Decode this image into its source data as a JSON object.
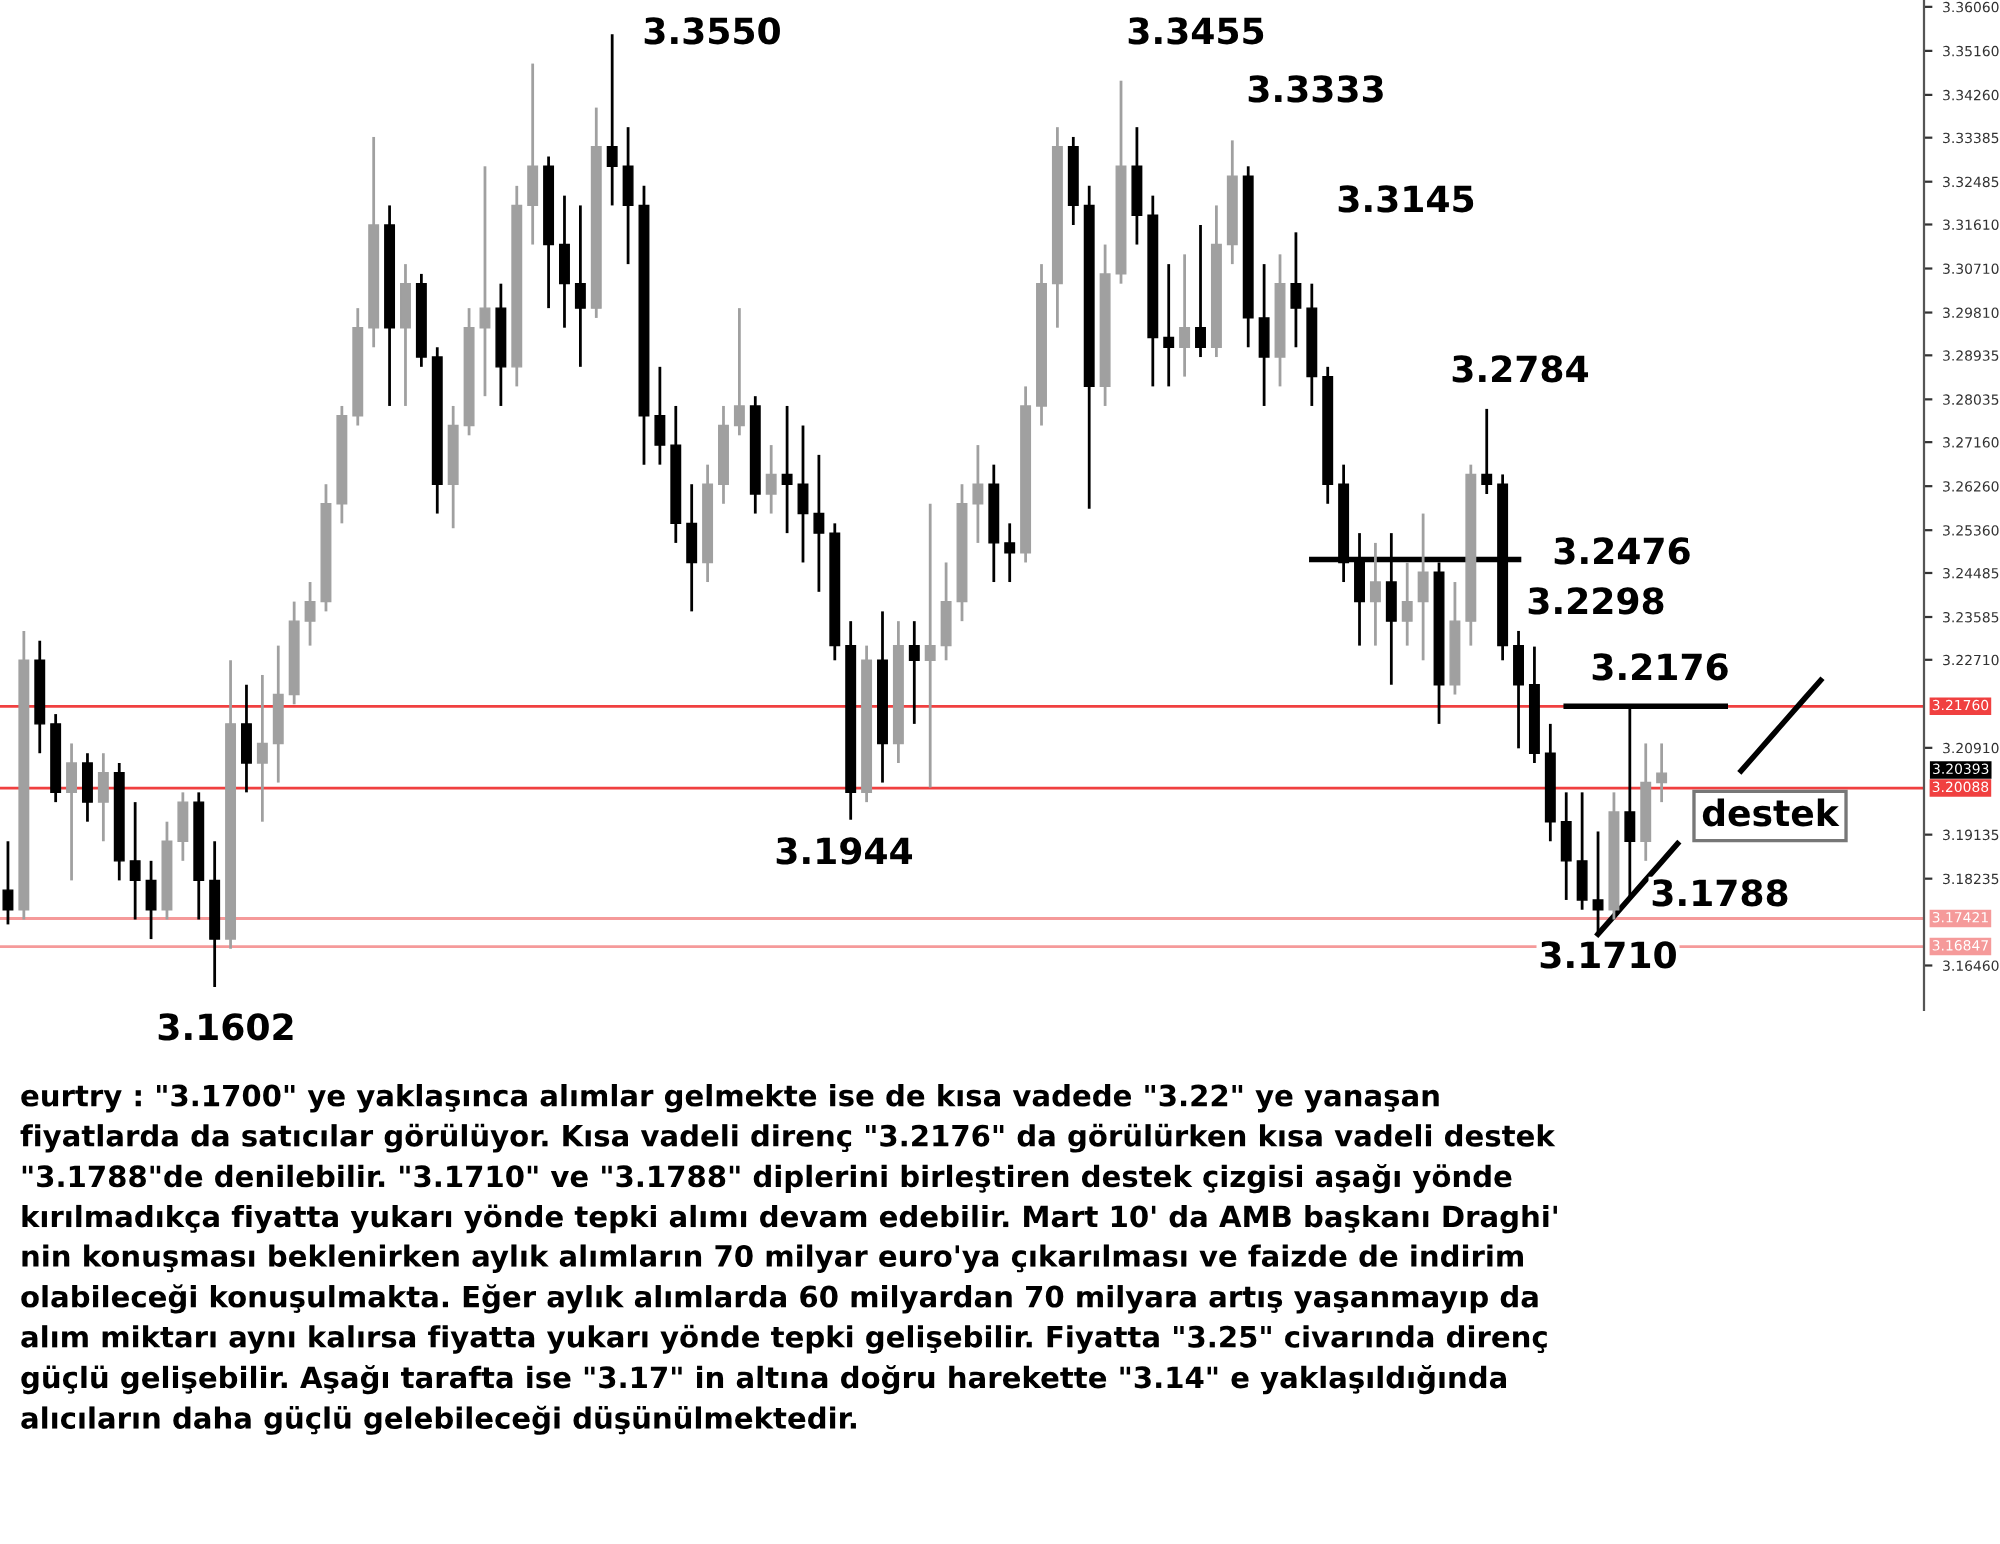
{
  "chart_data": {
    "type": "candlestick",
    "categories": [
      null,
      null,
      null,
      null,
      null,
      null,
      null,
      null,
      null,
      null,
      null,
      null,
      null,
      null,
      null,
      null,
      null,
      null,
      null,
      null,
      null,
      null,
      null,
      null,
      null,
      null,
      null,
      null,
      null,
      null,
      null,
      null,
      null,
      null,
      null,
      null,
      null,
      null,
      null,
      null,
      null,
      null,
      null,
      null,
      null,
      null,
      null,
      null,
      null,
      null,
      null,
      null,
      null,
      null,
      null,
      null,
      null,
      null,
      null,
      null,
      null,
      null,
      null,
      null,
      null,
      null,
      null,
      null,
      null,
      null,
      null,
      null,
      null,
      null,
      null,
      null,
      null,
      null,
      null,
      null,
      null,
      null,
      null,
      null,
      null,
      null,
      null,
      null,
      null,
      null,
      null,
      null,
      null,
      null,
      null,
      null,
      null,
      null,
      null,
      null,
      null,
      null,
      null,
      null,
      null,
      null,
      null,
      null,
      null,
      null,
      null,
      null,
      null,
      null,
      null,
      null,
      null,
      null,
      null,
      null,
      null
    ],
    "ohlc": [
      [
        3.18,
        3.19,
        3.173,
        3.176
      ],
      [
        3.176,
        3.233,
        3.174,
        3.227
      ],
      [
        3.227,
        3.231,
        3.208,
        3.214
      ],
      [
        3.214,
        3.216,
        3.198,
        3.2
      ],
      [
        3.2,
        3.21,
        3.182,
        3.206
      ],
      [
        3.206,
        3.208,
        3.194,
        3.198
      ],
      [
        3.198,
        3.208,
        3.19,
        3.204
      ],
      [
        3.204,
        3.206,
        3.182,
        3.186
      ],
      [
        3.186,
        3.198,
        3.174,
        3.182
      ],
      [
        3.182,
        3.186,
        3.17,
        3.176
      ],
      [
        3.176,
        3.194,
        3.174,
        3.19
      ],
      [
        3.19,
        3.2,
        3.186,
        3.198
      ],
      [
        3.198,
        3.2,
        3.174,
        3.182
      ],
      [
        3.182,
        3.19,
        3.1602,
        3.17
      ],
      [
        3.17,
        3.227,
        3.168,
        3.214
      ],
      [
        3.214,
        3.222,
        3.2,
        3.206
      ],
      [
        3.206,
        3.224,
        3.194,
        3.21
      ],
      [
        3.21,
        3.23,
        3.202,
        3.22
      ],
      [
        3.22,
        3.239,
        3.218,
        3.235
      ],
      [
        3.235,
        3.243,
        3.23,
        3.239
      ],
      [
        3.239,
        3.263,
        3.237,
        3.259
      ],
      [
        3.259,
        3.279,
        3.255,
        3.277
      ],
      [
        3.277,
        3.299,
        3.275,
        3.295
      ],
      [
        3.295,
        3.334,
        3.291,
        3.316
      ],
      [
        3.316,
        3.32,
        3.279,
        3.295
      ],
      [
        3.295,
        3.308,
        3.279,
        3.304
      ],
      [
        3.304,
        3.306,
        3.287,
        3.289
      ],
      [
        3.289,
        3.291,
        3.257,
        3.263
      ],
      [
        3.263,
        3.279,
        3.254,
        3.275
      ],
      [
        3.275,
        3.299,
        3.273,
        3.295
      ],
      [
        3.295,
        3.328,
        3.281,
        3.299
      ],
      [
        3.299,
        3.304,
        3.279,
        3.287
      ],
      [
        3.287,
        3.324,
        3.283,
        3.32
      ],
      [
        3.32,
        3.349,
        3.312,
        3.328
      ],
      [
        3.328,
        3.33,
        3.299,
        3.312
      ],
      [
        3.312,
        3.322,
        3.295,
        3.304
      ],
      [
        3.304,
        3.32,
        3.287,
        3.299
      ],
      [
        3.299,
        3.34,
        3.297,
        3.332
      ],
      [
        3.332,
        3.355,
        3.32,
        3.328
      ],
      [
        3.328,
        3.336,
        3.308,
        3.32
      ],
      [
        3.32,
        3.324,
        3.267,
        3.277
      ],
      [
        3.277,
        3.287,
        3.267,
        3.271
      ],
      [
        3.271,
        3.279,
        3.251,
        3.255
      ],
      [
        3.255,
        3.263,
        3.237,
        3.247
      ],
      [
        3.247,
        3.267,
        3.243,
        3.263
      ],
      [
        3.263,
        3.279,
        3.259,
        3.275
      ],
      [
        3.275,
        3.299,
        3.273,
        3.279
      ],
      [
        3.279,
        3.281,
        3.257,
        3.261
      ],
      [
        3.261,
        3.271,
        3.257,
        3.265
      ],
      [
        3.265,
        3.279,
        3.253,
        3.263
      ],
      [
        3.263,
        3.275,
        3.247,
        3.257
      ],
      [
        3.257,
        3.269,
        3.241,
        3.253
      ],
      [
        3.253,
        3.255,
        3.227,
        3.23
      ],
      [
        3.23,
        3.235,
        3.1944,
        3.2
      ],
      [
        3.2,
        3.23,
        3.198,
        3.227
      ],
      [
        3.227,
        3.237,
        3.202,
        3.21
      ],
      [
        3.21,
        3.235,
        3.206,
        3.23
      ],
      [
        3.23,
        3.235,
        3.214,
        3.227
      ],
      [
        3.227,
        3.259,
        3.201,
        3.23
      ],
      [
        3.23,
        3.247,
        3.227,
        3.239
      ],
      [
        3.239,
        3.263,
        3.235,
        3.259
      ],
      [
        3.259,
        3.271,
        3.251,
        3.263
      ],
      [
        3.263,
        3.267,
        3.243,
        3.251
      ],
      [
        3.251,
        3.255,
        3.243,
        3.249
      ],
      [
        3.249,
        3.283,
        3.247,
        3.279
      ],
      [
        3.279,
        3.308,
        3.275,
        3.304
      ],
      [
        3.304,
        3.336,
        3.295,
        3.332
      ],
      [
        3.332,
        3.334,
        3.316,
        3.32
      ],
      [
        3.32,
        3.324,
        3.258,
        3.283
      ],
      [
        3.283,
        3.312,
        3.279,
        3.306
      ],
      [
        3.306,
        3.3455,
        3.304,
        3.328
      ],
      [
        3.328,
        3.336,
        3.312,
        3.318
      ],
      [
        3.318,
        3.322,
        3.283,
        3.293
      ],
      [
        3.293,
        3.308,
        3.283,
        3.291
      ],
      [
        3.291,
        3.31,
        3.285,
        3.295
      ],
      [
        3.295,
        3.316,
        3.289,
        3.291
      ],
      [
        3.291,
        3.32,
        3.289,
        3.312
      ],
      [
        3.312,
        3.3333,
        3.308,
        3.326
      ],
      [
        3.326,
        3.328,
        3.291,
        3.297
      ],
      [
        3.297,
        3.308,
        3.279,
        3.289
      ],
      [
        3.289,
        3.31,
        3.283,
        3.304
      ],
      [
        3.304,
        3.3145,
        3.291,
        3.299
      ],
      [
        3.299,
        3.304,
        3.279,
        3.285
      ],
      [
        3.285,
        3.287,
        3.259,
        3.263
      ],
      [
        3.263,
        3.267,
        3.243,
        3.247
      ],
      [
        3.247,
        3.253,
        3.23,
        3.239
      ],
      [
        3.239,
        3.251,
        3.23,
        3.243
      ],
      [
        3.243,
        3.253,
        3.222,
        3.235
      ],
      [
        3.235,
        3.247,
        3.23,
        3.239
      ],
      [
        3.239,
        3.257,
        3.227,
        3.245
      ],
      [
        3.245,
        3.247,
        3.214,
        3.222
      ],
      [
        3.222,
        3.243,
        3.22,
        3.235
      ],
      [
        3.235,
        3.267,
        3.23,
        3.265
      ],
      [
        3.265,
        3.2784,
        3.261,
        3.263
      ],
      [
        3.263,
        3.265,
        3.227,
        3.23
      ],
      [
        3.23,
        3.233,
        3.209,
        3.222
      ],
      [
        3.222,
        3.2298,
        3.206,
        3.208
      ],
      [
        3.208,
        3.214,
        3.19,
        3.194
      ],
      [
        3.194,
        3.2,
        3.178,
        3.186
      ],
      [
        3.186,
        3.2,
        3.176,
        3.178
      ],
      [
        3.178,
        3.192,
        3.171,
        3.176
      ],
      [
        3.176,
        3.2,
        3.174,
        3.196
      ],
      [
        3.196,
        3.2176,
        3.1788,
        3.19
      ],
      [
        3.19,
        3.21,
        3.186,
        3.202
      ],
      [
        3.202,
        3.21,
        3.198,
        3.20393
      ],
      null,
      null,
      null,
      null,
      null,
      null,
      null,
      null,
      null,
      null,
      null,
      null,
      null,
      null,
      null,
      null
    ],
    "colors": [
      "#000000",
      "#a0a0a0",
      "#000000",
      "#000000",
      "#a0a0a0",
      "#000000",
      "#a0a0a0",
      "#000000",
      "#000000",
      "#000000",
      "#a0a0a0",
      "#a0a0a0",
      "#000000",
      "#000000",
      "#a0a0a0",
      "#000000",
      "#a0a0a0",
      "#a0a0a0",
      "#a0a0a0",
      "#a0a0a0",
      "#a0a0a0",
      "#a0a0a0",
      "#a0a0a0",
      "#a0a0a0",
      "#000000",
      "#a0a0a0",
      "#000000",
      "#000000",
      "#a0a0a0",
      "#a0a0a0",
      "#a0a0a0",
      "#000000",
      "#a0a0a0",
      "#a0a0a0",
      "#000000",
      "#000000",
      "#000000",
      "#a0a0a0",
      "#000000",
      "#000000",
      "#000000",
      "#000000",
      "#000000",
      "#000000",
      "#a0a0a0",
      "#a0a0a0",
      "#a0a0a0",
      "#000000",
      "#a0a0a0",
      "#000000",
      "#000000",
      "#000000",
      "#000000",
      "#000000",
      "#a0a0a0",
      "#000000",
      "#a0a0a0",
      "#000000",
      "#a0a0a0",
      "#a0a0a0",
      "#a0a0a0",
      "#a0a0a0",
      "#000000",
      "#000000",
      "#a0a0a0",
      "#a0a0a0",
      "#a0a0a0",
      "#000000",
      "#000000",
      "#a0a0a0",
      "#a0a0a0",
      "#000000",
      "#000000",
      "#000000",
      "#a0a0a0",
      "#000000",
      "#a0a0a0",
      "#a0a0a0",
      "#000000",
      "#000000",
      "#a0a0a0",
      "#000000",
      "#000000",
      "#000000",
      "#000000",
      "#000000",
      "#a0a0a0",
      "#000000",
      "#a0a0a0",
      "#a0a0a0",
      "#000000",
      "#a0a0a0",
      "#a0a0a0",
      "#000000",
      "#000000",
      "#000000",
      "#000000",
      "#000000",
      "#000000",
      "#000000",
      "#000000",
      "#a0a0a0",
      "#000000",
      "#a0a0a0",
      "#a0a0a0",
      null,
      null,
      null,
      null,
      null,
      null,
      null,
      null,
      null,
      null,
      null,
      null,
      null,
      null,
      null,
      null
    ],
    "series": [
      {
        "type": "line",
        "color": "#000000",
        "values": [
          null,
          null,
          null,
          null,
          null,
          null,
          null,
          null,
          null,
          null,
          null,
          null,
          null,
          null,
          null,
          null,
          null,
          null,
          null,
          null,
          null,
          null,
          null,
          null,
          null,
          null,
          null,
          null,
          null,
          null,
          null,
          null,
          null,
          null,
          null,
          null,
          null,
          null,
          null,
          null,
          null,
          null,
          null,
          null,
          null,
          null,
          null,
          null,
          null,
          null,
          null,
          null,
          null,
          null,
          null,
          null,
          null,
          null,
          null,
          null,
          null,
          null,
          null,
          null,
          null,
          null,
          null,
          null,
          null,
          null,
          null,
          null,
          null,
          null,
          null,
          null,
          null,
          null,
          null,
          null,
          null,
          null,
          null,
          null,
          null,
          null,
          null,
          null,
          null,
          null,
          null,
          null,
          null,
          null,
          null,
          null,
          null,
          null,
          null,
          null,
          3.171,
          3.1747,
          3.1784,
          3.1821,
          3.1858,
          3.1895,
          null,
          null,
          null,
          3.2044,
          3.2081,
          3.2118,
          3.2155,
          3.2192,
          3.2229,
          null,
          null,
          null,
          null,
          null,
          null
        ]
      },
      {
        "type": "line",
        "color": "#000000",
        "values": [
          null,
          null,
          null,
          null,
          null,
          null,
          null,
          null,
          null,
          null,
          null,
          null,
          null,
          null,
          null,
          null,
          null,
          null,
          null,
          null,
          null,
          null,
          null,
          null,
          null,
          null,
          null,
          null,
          null,
          null,
          null,
          null,
          null,
          null,
          null,
          null,
          null,
          null,
          null,
          null,
          null,
          null,
          null,
          null,
          null,
          null,
          null,
          null,
          null,
          null,
          null,
          null,
          null,
          null,
          null,
          null,
          null,
          null,
          null,
          null,
          null,
          null,
          null,
          null,
          null,
          null,
          null,
          null,
          null,
          null,
          null,
          null,
          null,
          null,
          null,
          null,
          null,
          null,
          null,
          null,
          null,
          null,
          3.2476,
          3.2476,
          3.2476,
          3.2476,
          3.2476,
          3.2476,
          3.2476,
          3.2476,
          3.2476,
          3.2476,
          3.2476,
          3.2476,
          3.2476,
          3.2476,
          null,
          null,
          null,
          null,
          null,
          null,
          null,
          null,
          null,
          null,
          null,
          null,
          null,
          null,
          null,
          null,
          null,
          null,
          null,
          null,
          null,
          null,
          null,
          null,
          null
        ]
      },
      {
        "type": "line",
        "color": "#000000",
        "values": [
          null,
          null,
          null,
          null,
          null,
          null,
          null,
          null,
          null,
          null,
          null,
          null,
          null,
          null,
          null,
          null,
          null,
          null,
          null,
          null,
          null,
          null,
          null,
          null,
          null,
          null,
          null,
          null,
          null,
          null,
          null,
          null,
          null,
          null,
          null,
          null,
          null,
          null,
          null,
          null,
          null,
          null,
          null,
          null,
          null,
          null,
          null,
          null,
          null,
          null,
          null,
          null,
          null,
          null,
          null,
          null,
          null,
          null,
          null,
          null,
          null,
          null,
          null,
          null,
          null,
          null,
          null,
          null,
          null,
          null,
          null,
          null,
          null,
          null,
          null,
          null,
          null,
          null,
          null,
          null,
          null,
          null,
          null,
          null,
          null,
          null,
          null,
          null,
          null,
          null,
          null,
          null,
          null,
          null,
          null,
          null,
          null,
          null,
          3.2176,
          3.2176,
          3.2176,
          3.2176,
          3.2176,
          3.2176,
          3.2176,
          3.2176,
          3.2176,
          3.2176,
          3.2176,
          null,
          null,
          null,
          null,
          null,
          null,
          null,
          null,
          null,
          null,
          null,
          null
        ]
      }
    ],
    "ylim": [
      3.1555,
      3.362
    ],
    "yticks": [
      {
        "value": 3.3606,
        "label": "3.36060"
      },
      {
        "value": 3.3516,
        "label": "3.35160"
      },
      {
        "value": 3.3426,
        "label": "3.34260"
      },
      {
        "value": 3.33385,
        "label": "3.33385"
      },
      {
        "value": 3.32485,
        "label": "3.32485"
      },
      {
        "value": 3.3161,
        "label": "3.31610"
      },
      {
        "value": 3.3071,
        "label": "3.30710"
      },
      {
        "value": 3.2981,
        "label": "3.29810"
      },
      {
        "value": 3.28935,
        "label": "3.28935"
      },
      {
        "value": 3.28035,
        "label": "3.28035"
      },
      {
        "value": 3.2716,
        "label": "3.27160"
      },
      {
        "value": 3.2626,
        "label": "3.26260"
      },
      {
        "value": 3.2536,
        "label": "3.25360"
      },
      {
        "value": 3.24485,
        "label": "3.24485"
      },
      {
        "value": 3.23585,
        "label": "3.23585"
      },
      {
        "value": 3.2271,
        "label": "3.22710"
      },
      {
        "value": 3.2091,
        "label": "3.20910"
      },
      {
        "value": 3.19135,
        "label": "3.19135"
      },
      {
        "value": 3.18235,
        "label": "3.18235"
      },
      {
        "value": 3.1646,
        "label": "3.16460"
      }
    ],
    "ref_lines": [
      {
        "axis": "y",
        "value": 3.2176,
        "label": "3.21760",
        "color": "#f04040"
      },
      {
        "axis": "y",
        "value": 3.20088,
        "label": "3.20088",
        "color": "#f04040"
      },
      {
        "axis": "y",
        "value": 3.17421,
        "label": "3.17421",
        "color": "#f59a9a"
      },
      {
        "axis": "y",
        "value": 3.16847,
        "label": "3.16847",
        "color": "#f59a9a"
      }
    ],
    "tick_labels": "y",
    "annotations": [
      "3.3550",
      "3.3455",
      "3.3333",
      "3.3145",
      "3.2784",
      "3.2476",
      "3.2298",
      "3.2176",
      "3.1944",
      "3.1602",
      "3.1710",
      "3.1788",
      "destek",
      "eurtry : \"3.1700\" ye yaklaşınca alımlar gelmekte ise de kısa vadede \"3.22\" ye yanaşan\nfiyatlarda da satıcılar görülüyor. Kısa vadeli direnç \"3.2176\" da görülürken kısa vadeli destek\n\"3.1788\"de denilebilir. \"3.1710\" ve \"3.1788\" diplerini birleştiren destek çizgisi aşağı yönde\nkırılmadıkça fiyatta yukarı yönde tepki alımı devam edebilir. Mart 10' da AMB başkanı Draghi'\nnin konuşması beklenirken aylık alımların 70 milyar euro'ya çıkarılması ve faizde de indirim\nolabileceği konuşulmakta. Eğer aylık alımlarda 60 milyardan 70 milyara artış yaşanmayıp da\nalım miktarı aynı kalırsa fiyatta yukarı yönde tepki gelişebilir. Fiyatta \"3.25\" civarında direnç\ngüçlü gelişebilir. Aşağı tarafta ise \"3.17\" in altına doğru harekette \"3.14\" e yaklaşıldığında\nalıcıların daha güçlü gelebileceği düşünülmektedir.",
      "3.20393"
    ]
  }
}
